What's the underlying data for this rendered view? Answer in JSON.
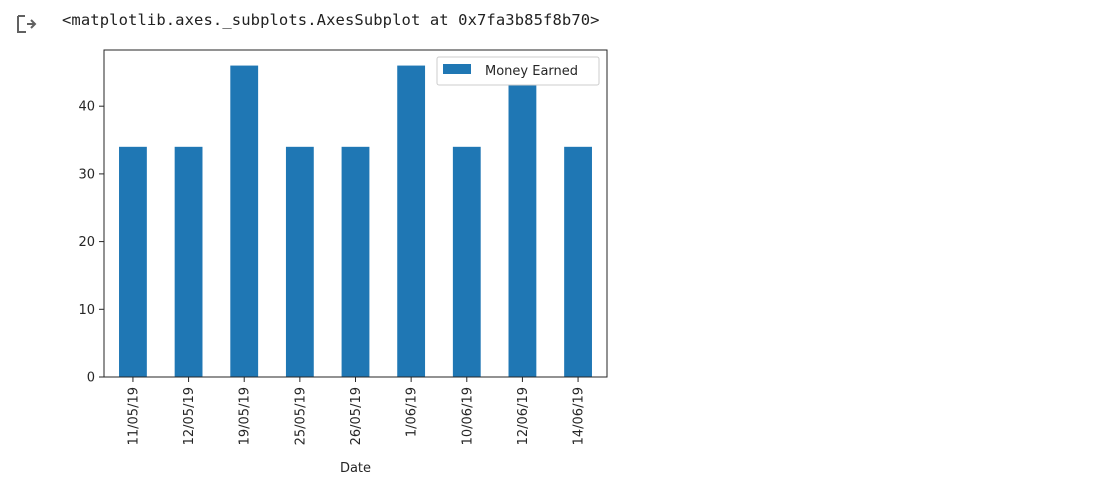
{
  "output": {
    "icon": "output-arrow-icon",
    "repr_text": "<matplotlib.axes._subplots.AxesSubplot at 0x7fa3b85f8b70>"
  },
  "colors": {
    "bar": "#1f77b4",
    "axis": "#262626",
    "icon": "#616161"
  },
  "chart_data": {
    "type": "bar",
    "categories": [
      "11/05/19",
      "12/05/19",
      "19/05/19",
      "25/05/19",
      "26/05/19",
      "1/06/19",
      "10/06/19",
      "12/06/19",
      "14/06/19"
    ],
    "series": [
      {
        "name": "Money Earned",
        "values": [
          34,
          34,
          46,
          34,
          34,
          46,
          34,
          46,
          34
        ]
      }
    ],
    "xlabel": "Date",
    "ylabel": "",
    "ylim": [
      0,
      48.3
    ],
    "yticks": [
      0,
      10,
      20,
      30,
      40
    ],
    "legend_position": "upper-right",
    "grid": false
  }
}
